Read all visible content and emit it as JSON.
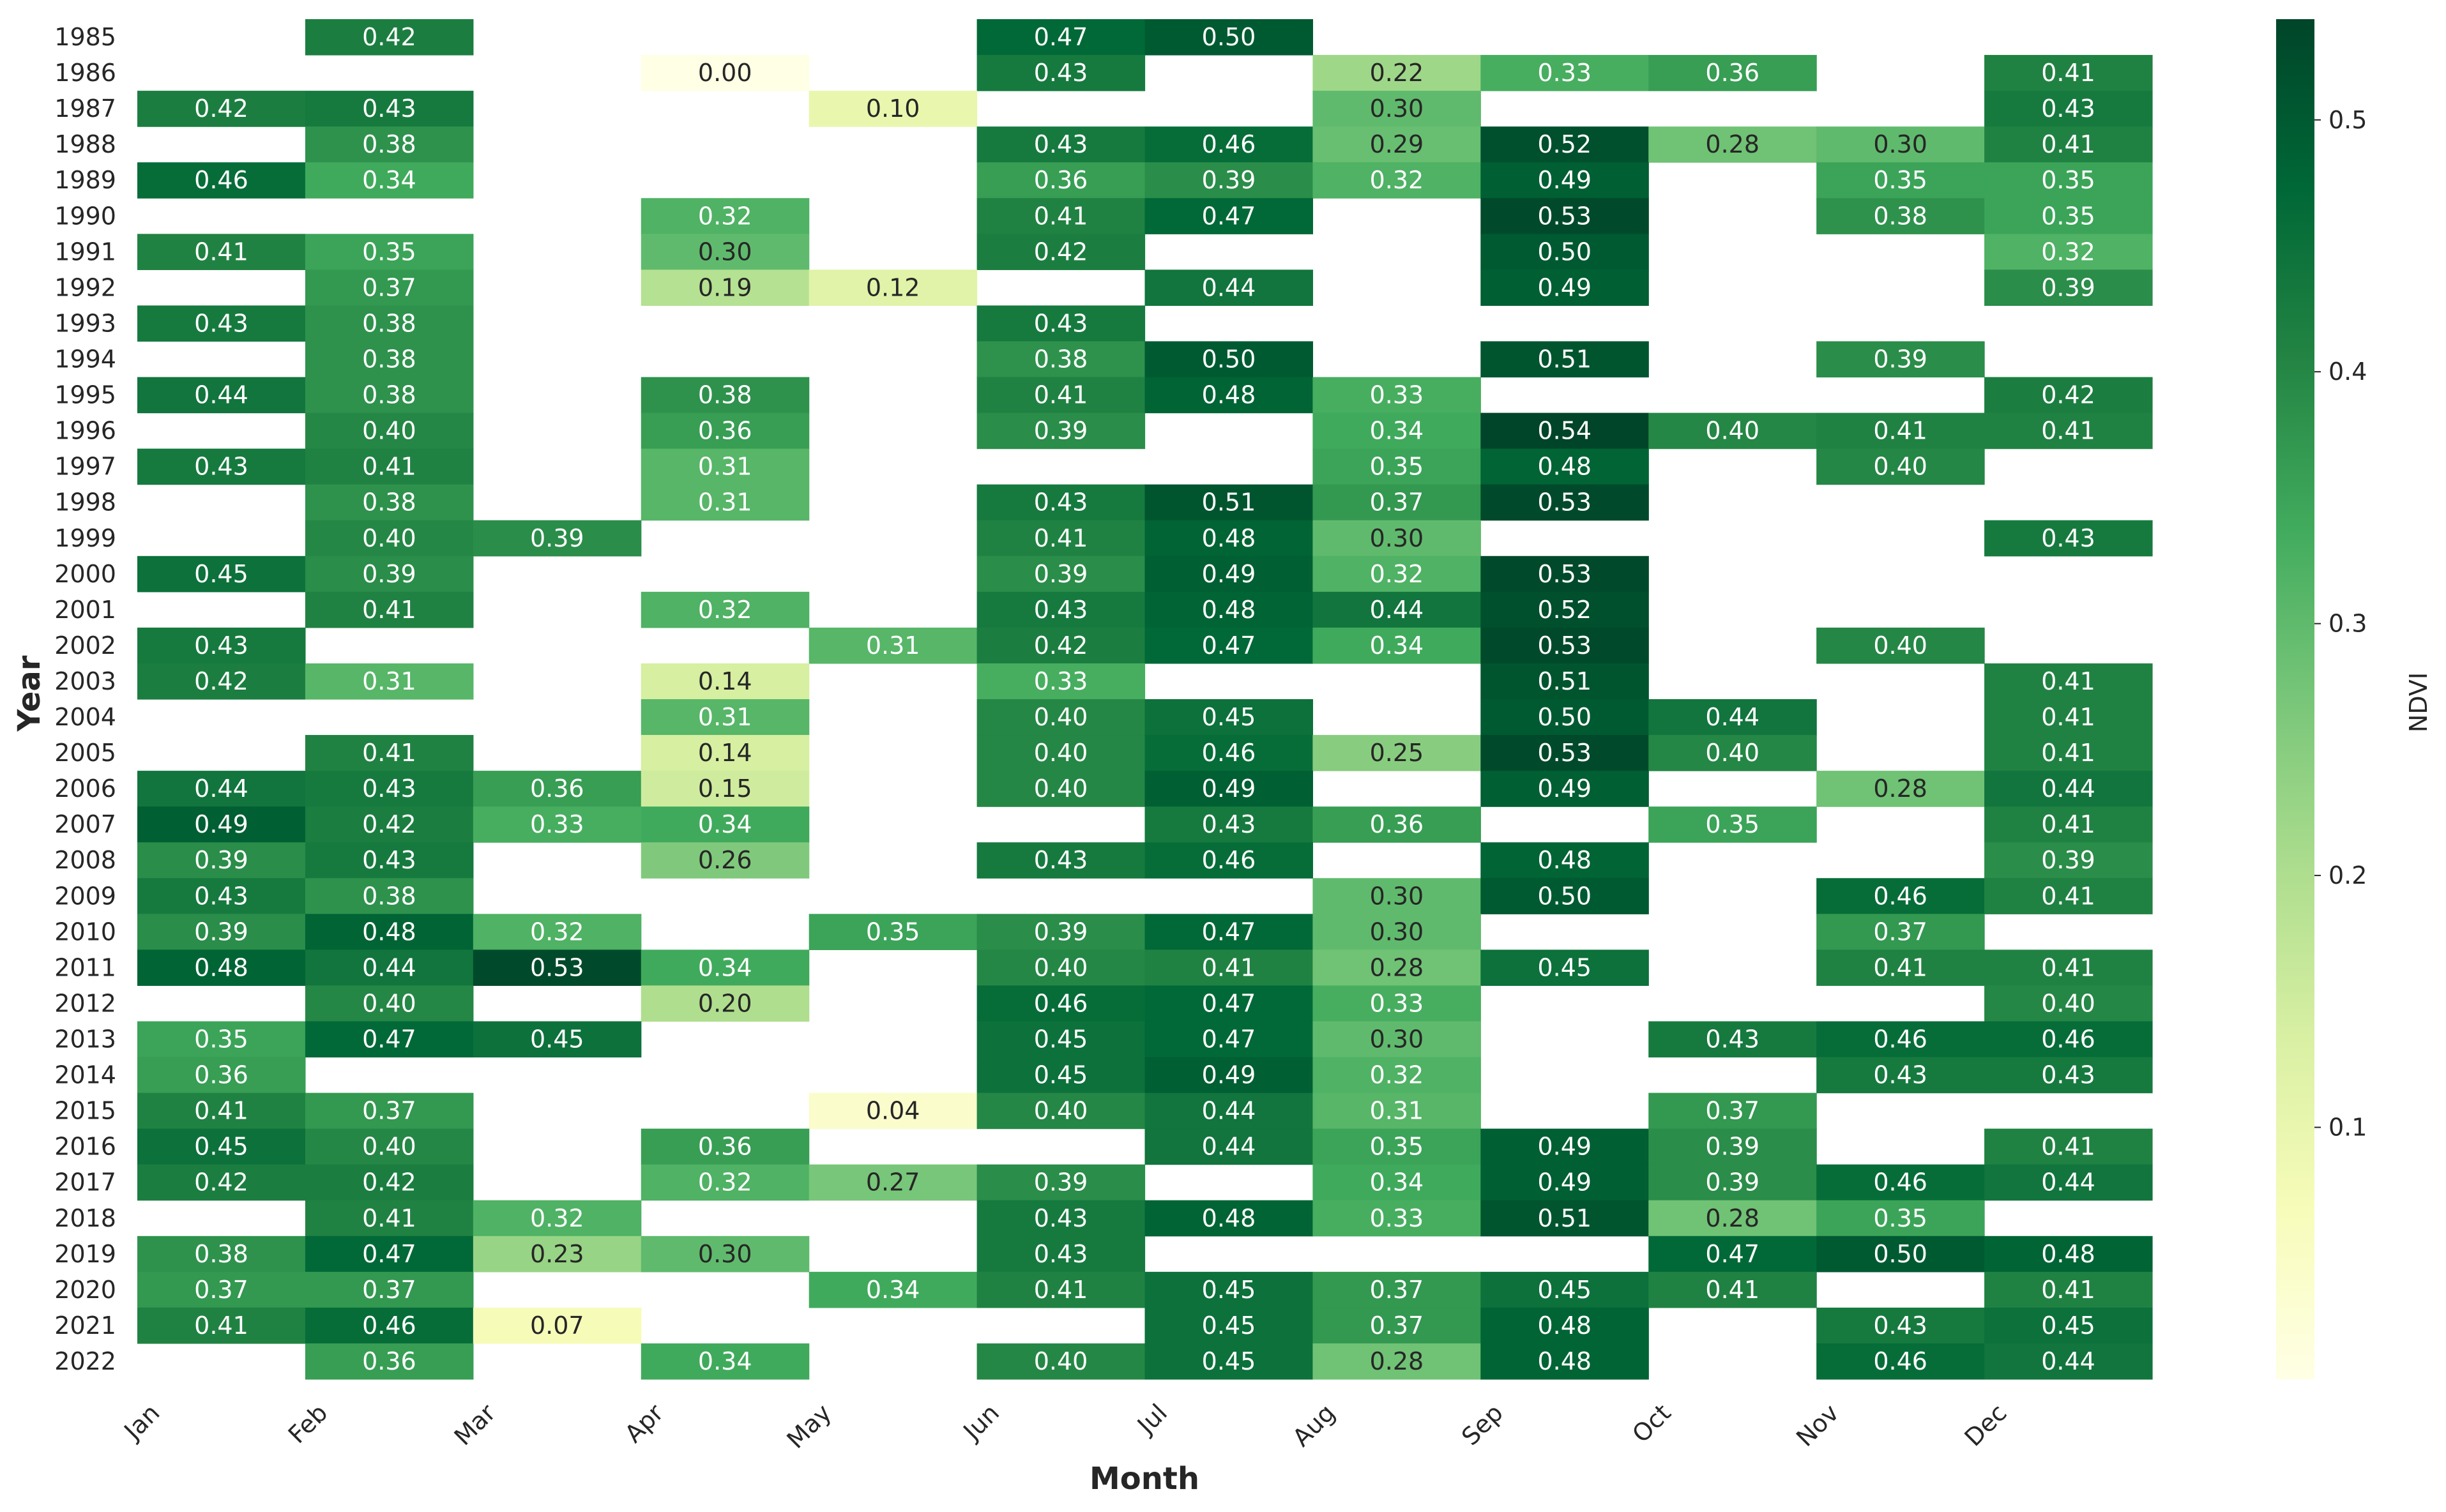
{
  "chart_data": {
    "type": "heatmap",
    "title": "",
    "xlabel": "Month",
    "ylabel": "Year",
    "colorbar_label": "NDVI",
    "colormap": "YlGn",
    "color_stops": [
      "#ffffe5",
      "#f7fcb9",
      "#d9f0a3",
      "#addd8e",
      "#78c679",
      "#41ab5d",
      "#238443",
      "#006837",
      "#004529"
    ],
    "vmin": 0.0,
    "vmax": 0.54,
    "colorbar_ticks": [
      "0.1",
      "0.2",
      "0.3",
      "0.4",
      "0.5"
    ],
    "x_categories": [
      "Jan",
      "Feb",
      "Mar",
      "Apr",
      "May",
      "Jun",
      "Jul",
      "Aug",
      "Sep",
      "Oct",
      "Nov",
      "Dec"
    ],
    "y_categories": [
      "1985",
      "1986",
      "1987",
      "1988",
      "1989",
      "1990",
      "1991",
      "1992",
      "1993",
      "1994",
      "1995",
      "1996",
      "1997",
      "1998",
      "1999",
      "2000",
      "2001",
      "2002",
      "2003",
      "2004",
      "2005",
      "2006",
      "2007",
      "2008",
      "2009",
      "2010",
      "2011",
      "2012",
      "2013",
      "2014",
      "2015",
      "2016",
      "2017",
      "2018",
      "2019",
      "2020",
      "2021",
      "2022"
    ],
    "values": [
      [
        null,
        0.42,
        null,
        null,
        null,
        0.47,
        0.5,
        null,
        null,
        null,
        null,
        null
      ],
      [
        null,
        null,
        null,
        0.0,
        null,
        0.43,
        null,
        0.22,
        0.33,
        0.36,
        null,
        0.41
      ],
      [
        0.42,
        0.43,
        null,
        null,
        0.1,
        null,
        null,
        0.3,
        null,
        null,
        null,
        0.43
      ],
      [
        null,
        0.38,
        null,
        null,
        null,
        0.43,
        0.46,
        0.29,
        0.52,
        0.28,
        0.3,
        0.41
      ],
      [
        0.46,
        0.34,
        null,
        null,
        null,
        0.36,
        0.39,
        0.32,
        0.49,
        null,
        0.35,
        0.35
      ],
      [
        null,
        null,
        null,
        0.32,
        null,
        0.41,
        0.47,
        null,
        0.53,
        null,
        0.38,
        0.35
      ],
      [
        0.41,
        0.35,
        null,
        0.3,
        null,
        0.42,
        null,
        null,
        0.5,
        null,
        null,
        0.32
      ],
      [
        null,
        0.37,
        null,
        0.19,
        0.12,
        null,
        0.44,
        null,
        0.49,
        null,
        null,
        0.39
      ],
      [
        0.43,
        0.38,
        null,
        null,
        null,
        0.43,
        null,
        null,
        null,
        null,
        null,
        null
      ],
      [
        null,
        0.38,
        null,
        null,
        null,
        0.38,
        0.5,
        null,
        0.51,
        null,
        0.39,
        null
      ],
      [
        0.44,
        0.38,
        null,
        0.38,
        null,
        0.41,
        0.48,
        0.33,
        null,
        null,
        null,
        0.42
      ],
      [
        null,
        0.4,
        null,
        0.36,
        null,
        0.39,
        null,
        0.34,
        0.54,
        0.4,
        0.41,
        0.41
      ],
      [
        0.43,
        0.41,
        null,
        0.31,
        null,
        null,
        null,
        0.35,
        0.48,
        null,
        0.4,
        null
      ],
      [
        null,
        0.38,
        null,
        0.31,
        null,
        0.43,
        0.51,
        0.37,
        0.53,
        null,
        null,
        null
      ],
      [
        null,
        0.4,
        0.39,
        null,
        null,
        0.41,
        0.48,
        0.3,
        null,
        null,
        null,
        0.43
      ],
      [
        0.45,
        0.39,
        null,
        null,
        null,
        0.39,
        0.49,
        0.32,
        0.53,
        null,
        null,
        null
      ],
      [
        null,
        0.41,
        null,
        0.32,
        null,
        0.43,
        0.48,
        0.44,
        0.52,
        null,
        null,
        null
      ],
      [
        0.43,
        null,
        null,
        null,
        0.31,
        0.42,
        0.47,
        0.34,
        0.53,
        null,
        0.4,
        null
      ],
      [
        0.42,
        0.31,
        null,
        0.14,
        null,
        0.33,
        null,
        null,
        0.51,
        null,
        null,
        0.41
      ],
      [
        null,
        null,
        null,
        0.31,
        null,
        0.4,
        0.45,
        null,
        0.5,
        0.44,
        null,
        0.41
      ],
      [
        null,
        0.41,
        null,
        0.14,
        null,
        0.4,
        0.46,
        0.25,
        0.53,
        0.4,
        null,
        0.41
      ],
      [
        0.44,
        0.43,
        0.36,
        0.15,
        null,
        0.4,
        0.49,
        null,
        0.49,
        null,
        0.28,
        0.44
      ],
      [
        0.49,
        0.42,
        0.33,
        0.34,
        null,
        null,
        0.43,
        0.36,
        null,
        0.35,
        null,
        0.41
      ],
      [
        0.39,
        0.43,
        null,
        0.26,
        null,
        0.43,
        0.46,
        null,
        0.48,
        null,
        null,
        0.39
      ],
      [
        0.43,
        0.38,
        null,
        null,
        null,
        null,
        null,
        0.3,
        0.5,
        null,
        0.46,
        0.41
      ],
      [
        0.39,
        0.48,
        0.32,
        null,
        0.35,
        0.39,
        0.47,
        0.3,
        null,
        null,
        0.37,
        null
      ],
      [
        0.48,
        0.44,
        0.53,
        0.34,
        null,
        0.4,
        0.41,
        0.28,
        0.45,
        null,
        0.41,
        0.41
      ],
      [
        null,
        0.4,
        null,
        0.2,
        null,
        0.46,
        0.47,
        0.33,
        null,
        null,
        null,
        0.4
      ],
      [
        0.35,
        0.47,
        0.45,
        null,
        null,
        0.45,
        0.47,
        0.3,
        null,
        0.43,
        0.46,
        0.46
      ],
      [
        0.36,
        null,
        null,
        null,
        null,
        0.45,
        0.49,
        0.32,
        null,
        null,
        0.43,
        0.43
      ],
      [
        0.41,
        0.37,
        null,
        null,
        0.04,
        0.4,
        0.44,
        0.31,
        null,
        0.37,
        null,
        null
      ],
      [
        0.45,
        0.4,
        null,
        0.36,
        null,
        null,
        0.44,
        0.35,
        0.49,
        0.39,
        null,
        0.41
      ],
      [
        0.42,
        0.42,
        null,
        0.32,
        0.27,
        0.39,
        null,
        0.34,
        0.49,
        0.39,
        0.46,
        0.44
      ],
      [
        null,
        0.41,
        0.32,
        null,
        null,
        0.43,
        0.48,
        0.33,
        0.51,
        0.28,
        0.35,
        null
      ],
      [
        0.38,
        0.47,
        0.23,
        0.3,
        null,
        0.43,
        null,
        null,
        null,
        0.47,
        0.5,
        0.48
      ],
      [
        0.37,
        0.37,
        null,
        null,
        0.34,
        0.41,
        0.45,
        0.37,
        0.45,
        0.41,
        null,
        0.41
      ],
      [
        0.41,
        0.46,
        0.07,
        null,
        null,
        null,
        0.45,
        0.37,
        0.48,
        null,
        0.43,
        0.45
      ],
      [
        null,
        0.36,
        null,
        0.34,
        null,
        0.4,
        0.45,
        0.28,
        0.48,
        null,
        0.46,
        0.44
      ]
    ],
    "grid": false,
    "legend": "colorbar-right"
  }
}
